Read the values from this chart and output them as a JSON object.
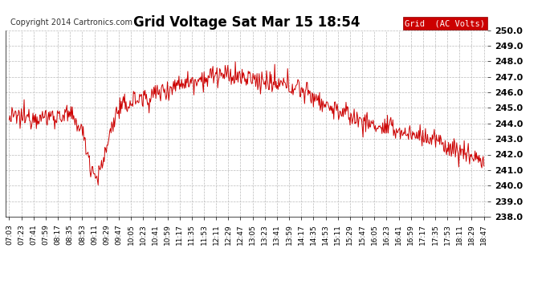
{
  "title": "Grid Voltage Sat Mar 15 18:54",
  "copyright": "Copyright 2014 Cartronics.com",
  "legend_label": "Grid  (AC Volts)",
  "legend_bg": "#cc0000",
  "legend_fg": "#ffffff",
  "line_color": "#cc0000",
  "background_color": "#ffffff",
  "grid_color": "#bbbbbb",
  "ylim": [
    238.0,
    250.0
  ],
  "yticks": [
    238.0,
    239.0,
    240.0,
    241.0,
    242.0,
    243.0,
    244.0,
    245.0,
    246.0,
    247.0,
    248.0,
    249.0,
    250.0
  ],
  "xtick_labels": [
    "07:03",
    "07:23",
    "07:41",
    "07:59",
    "08:17",
    "08:35",
    "08:53",
    "09:11",
    "09:29",
    "09:47",
    "10:05",
    "10:23",
    "10:41",
    "10:59",
    "11:17",
    "11:35",
    "11:53",
    "12:11",
    "12:29",
    "12:47",
    "13:05",
    "13:23",
    "13:41",
    "13:59",
    "14:17",
    "14:35",
    "14:53",
    "15:11",
    "15:29",
    "15:47",
    "16:05",
    "16:23",
    "16:41",
    "16:59",
    "17:17",
    "17:35",
    "17:53",
    "18:11",
    "18:29",
    "18:47"
  ]
}
